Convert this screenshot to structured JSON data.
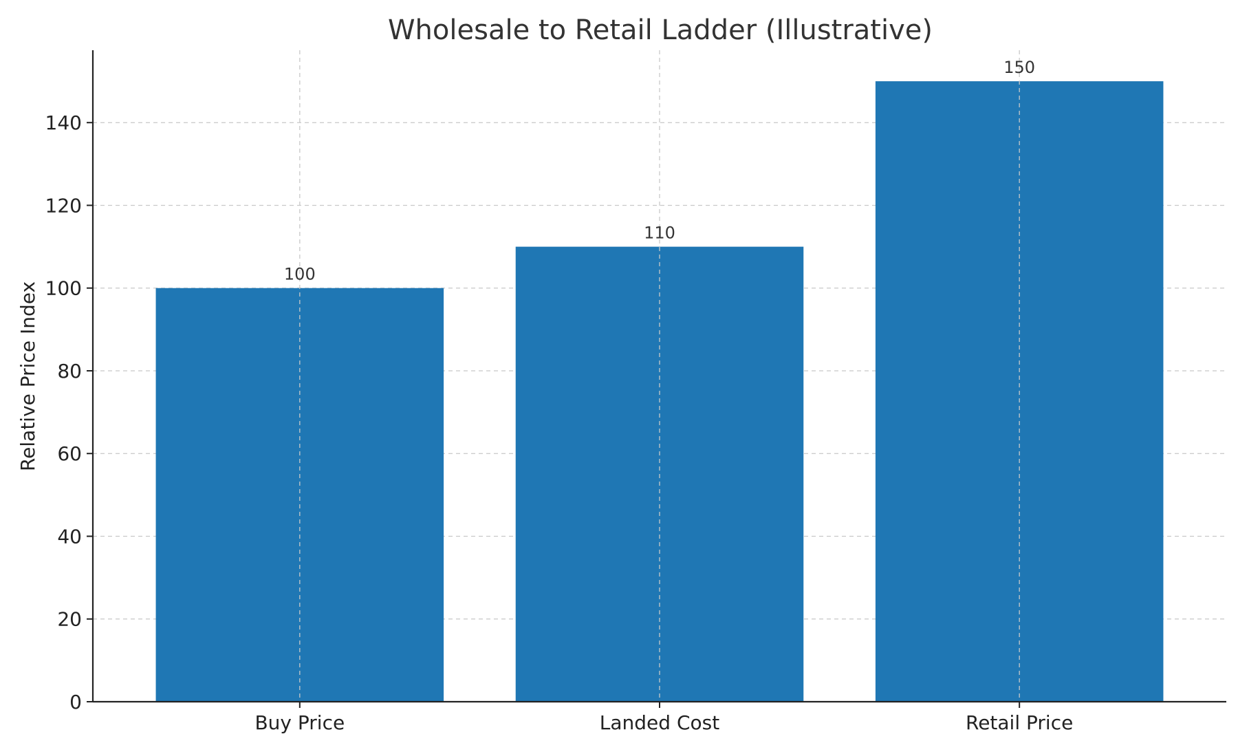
{
  "chart_data": {
    "type": "bar",
    "title": "Wholesale to Retail Ladder (Illustrative)",
    "xlabel": "",
    "ylabel": "Relative Price Index",
    "categories": [
      "Buy Price",
      "Landed Cost",
      "Retail Price"
    ],
    "values": [
      100,
      110,
      150
    ],
    "data_labels": [
      "100",
      "110",
      "150"
    ],
    "ylim": [
      0,
      157.5
    ],
    "yticks": [
      0,
      20,
      40,
      60,
      80,
      100,
      120,
      140
    ],
    "grid": true,
    "bar_color": "#1f77b4",
    "grid_color": "#c8c8c8"
  }
}
